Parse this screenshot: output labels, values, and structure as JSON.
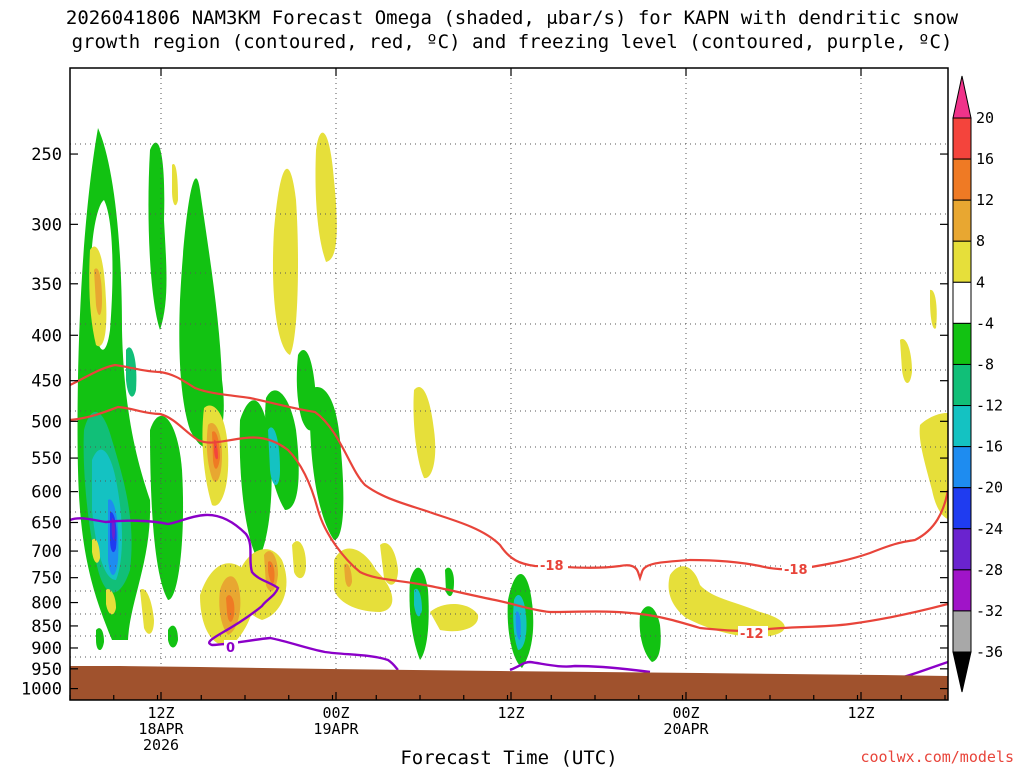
{
  "title_line1": "2026041806 NAM3KM Forecast Omega (shaded, μbar/s) for KAPN with dendritic snow",
  "title_line2": "growth region (contoured, red, ºC) and freezing level (contoured, purple, ºC)",
  "credit": "coolwx.com/models",
  "chart_data": {
    "type": "time-height cross section",
    "xlabel": "Forecast Time (UTC)",
    "y_ticks": [
      "250",
      "300",
      "350",
      "400",
      "450",
      "500",
      "550",
      "600",
      "650",
      "700",
      "750",
      "800",
      "850",
      "900",
      "950",
      "1000"
    ],
    "y_values": [
      250,
      300,
      350,
      400,
      450,
      500,
      550,
      600,
      650,
      700,
      750,
      800,
      850,
      900,
      950,
      1000
    ],
    "y_scale": "log-pressure (inverted)",
    "ylim": [
      200,
      1030
    ],
    "x_ticks": [
      {
        "time": "12Z",
        "date": "18APR",
        "year": "2026"
      },
      {
        "time": "00Z",
        "date": "19APR",
        "year": ""
      },
      {
        "time": "12Z",
        "date": "",
        "year": ""
      },
      {
        "time": "00Z",
        "date": "20APR",
        "year": ""
      },
      {
        "time": "12Z",
        "date": "",
        "year": ""
      }
    ],
    "contour_labels": [
      {
        "text": "-18",
        "color": "#e8443a"
      },
      {
        "text": "-18",
        "color": "#e8443a"
      },
      {
        "text": "-12",
        "color": "#e8443a"
      },
      {
        "text": "0",
        "color": "#8b00c8"
      }
    ],
    "colorbar": {
      "labels": [
        "20",
        "16",
        "12",
        "8",
        "4",
        "-4",
        "-8",
        "-12",
        "-16",
        "-20",
        "-24",
        "-28",
        "-32",
        "-36"
      ],
      "colors": [
        "#f0338a",
        "#f4443c",
        "#ef7a24",
        "#e8a731",
        "#e6df3a",
        "#ffffff",
        "#12c212",
        "#11bf78",
        "#14c2c2",
        "#1e8cf0",
        "#1f3cf0",
        "#6a23cf",
        "#a014c8",
        "#a8a8a8",
        "#000000"
      ]
    }
  }
}
